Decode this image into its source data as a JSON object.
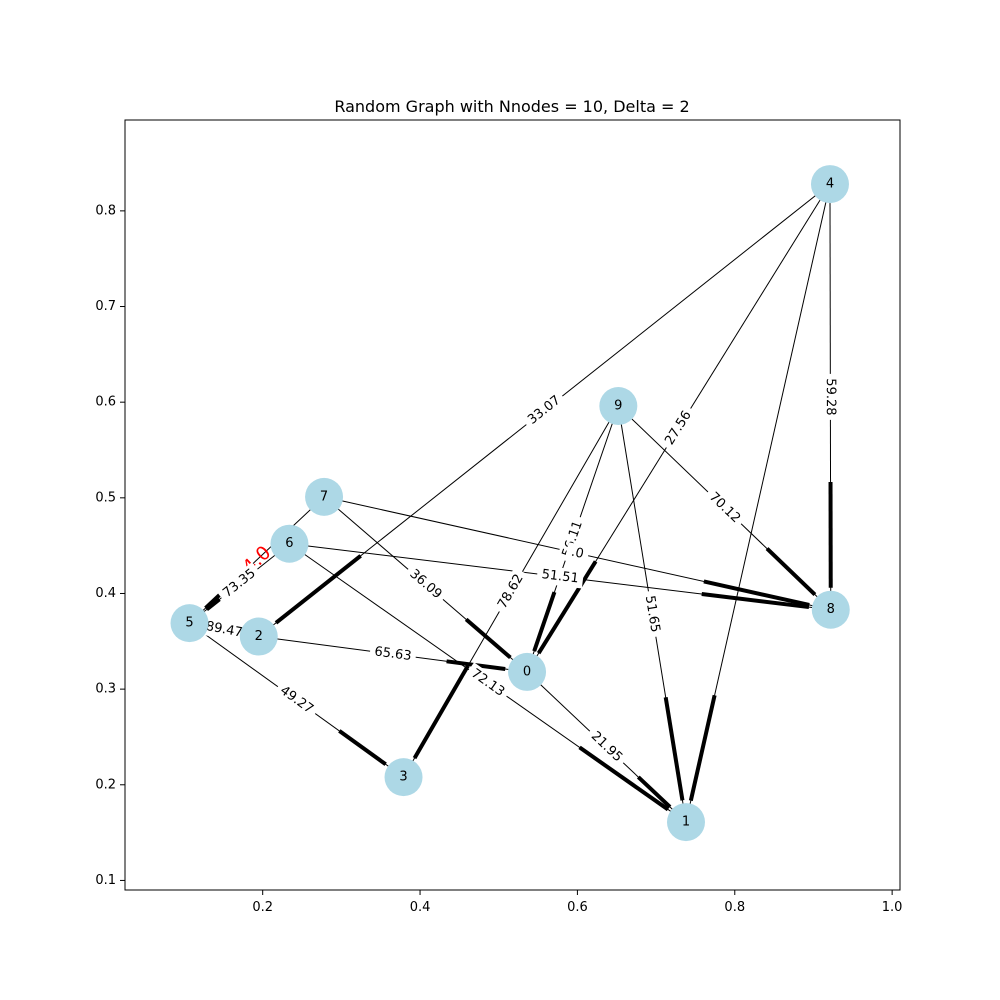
{
  "chart_data": {
    "type": "graph",
    "title": "Random Graph with Nnodes = 10, Delta = 2",
    "xlim": [
      0.025,
      1.01
    ],
    "ylim": [
      0.09,
      0.895
    ],
    "x_ticks": [
      {
        "value": 0.2,
        "label": "0.2"
      },
      {
        "value": 0.4,
        "label": "0.4"
      },
      {
        "value": 0.6,
        "label": "0.6"
      },
      {
        "value": 0.8,
        "label": "0.8"
      },
      {
        "value": 1.0,
        "label": "1.0"
      }
    ],
    "y_ticks": [
      {
        "value": 0.1,
        "label": "0.1"
      },
      {
        "value": 0.2,
        "label": "0.2"
      },
      {
        "value": 0.3,
        "label": "0.3"
      },
      {
        "value": 0.4,
        "label": "0.4"
      },
      {
        "value": 0.5,
        "label": "0.5"
      },
      {
        "value": 0.6,
        "label": "0.6"
      },
      {
        "value": 0.7,
        "label": "0.7"
      },
      {
        "value": 0.8,
        "label": "0.8"
      }
    ],
    "node_color": "#add8e6",
    "nodes": [
      {
        "id": "0",
        "label": "0",
        "x": 0.536,
        "y": 0.318
      },
      {
        "id": "1",
        "label": "1",
        "x": 0.738,
        "y": 0.161
      },
      {
        "id": "2",
        "label": "2",
        "x": 0.195,
        "y": 0.355
      },
      {
        "id": "3",
        "label": "3",
        "x": 0.379,
        "y": 0.208
      },
      {
        "id": "4",
        "label": "4",
        "x": 0.921,
        "y": 0.828
      },
      {
        "id": "5",
        "label": "5",
        "x": 0.107,
        "y": 0.369
      },
      {
        "id": "6",
        "label": "6",
        "x": 0.234,
        "y": 0.452
      },
      {
        "id": "7",
        "label": "7",
        "x": 0.278,
        "y": 0.501
      },
      {
        "id": "8",
        "label": "8",
        "x": 0.922,
        "y": 0.383
      },
      {
        "id": "9",
        "label": "9",
        "x": 0.652,
        "y": 0.596
      }
    ],
    "edges": [
      {
        "source": "4",
        "target": "2",
        "label": "33.07"
      },
      {
        "source": "4",
        "target": "8",
        "label": "59.28"
      },
      {
        "source": "4",
        "target": "0",
        "label": "27.56"
      },
      {
        "source": "4",
        "target": "1",
        "label": ""
      },
      {
        "source": "9",
        "target": "3",
        "label": "78.62"
      },
      {
        "source": "9",
        "target": "8",
        "label": "70.12"
      },
      {
        "source": "9",
        "target": "1",
        "label": "51.65"
      },
      {
        "source": "9",
        "target": "0",
        "label": "56.11"
      },
      {
        "source": "7",
        "target": "8",
        "label": ".0"
      },
      {
        "source": "7",
        "target": "0",
        "label": "36.09"
      },
      {
        "source": "7",
        "target": "5",
        "label": "4.0",
        "highlight": true
      },
      {
        "source": "6",
        "target": "8",
        "label": "51.51"
      },
      {
        "source": "6",
        "target": "5",
        "label": "73.35"
      },
      {
        "source": "6",
        "target": "1",
        "label": "72.13"
      },
      {
        "source": "5",
        "target": "2",
        "label": "89.47"
      },
      {
        "source": "5",
        "target": "3",
        "label": "49.27"
      },
      {
        "source": "2",
        "target": "0",
        "label": "65.63"
      },
      {
        "source": "0",
        "target": "1",
        "label": "21.95"
      }
    ]
  }
}
